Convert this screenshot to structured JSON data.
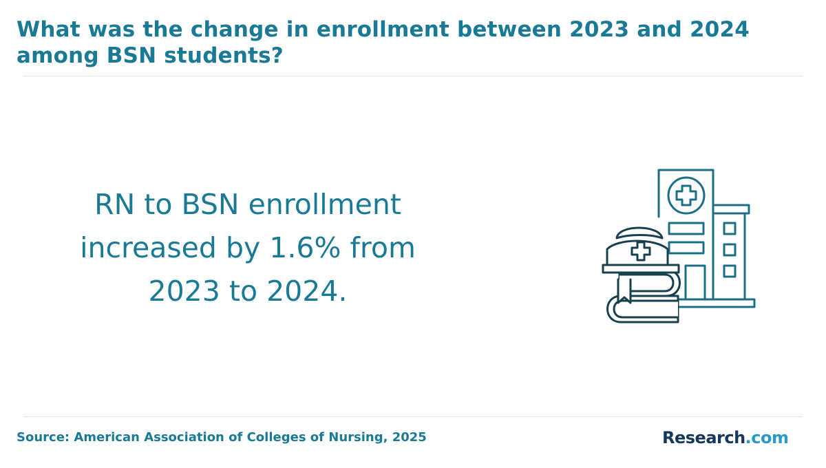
{
  "header": {
    "title": "What was the change in enrollment between 2023 and 2024 among BSN students?"
  },
  "main": {
    "statement": "RN to BSN enrollment increased by 1.6% from 2023 to 2024.",
    "illustration_icon": "hospital-nurse-cap-books-icon"
  },
  "footer": {
    "source": "Source: American Association of Colleges of Nursing, 2025",
    "logo": {
      "brand": "Research",
      "tld": ".com"
    }
  },
  "colors": {
    "title": "#1a7a96",
    "statement": "#1a7a96",
    "icon_stroke": "#1a6e86",
    "icon_dark": "#16404e",
    "logo_brand": "#16365c",
    "logo_tld": "#2a9bc4"
  }
}
